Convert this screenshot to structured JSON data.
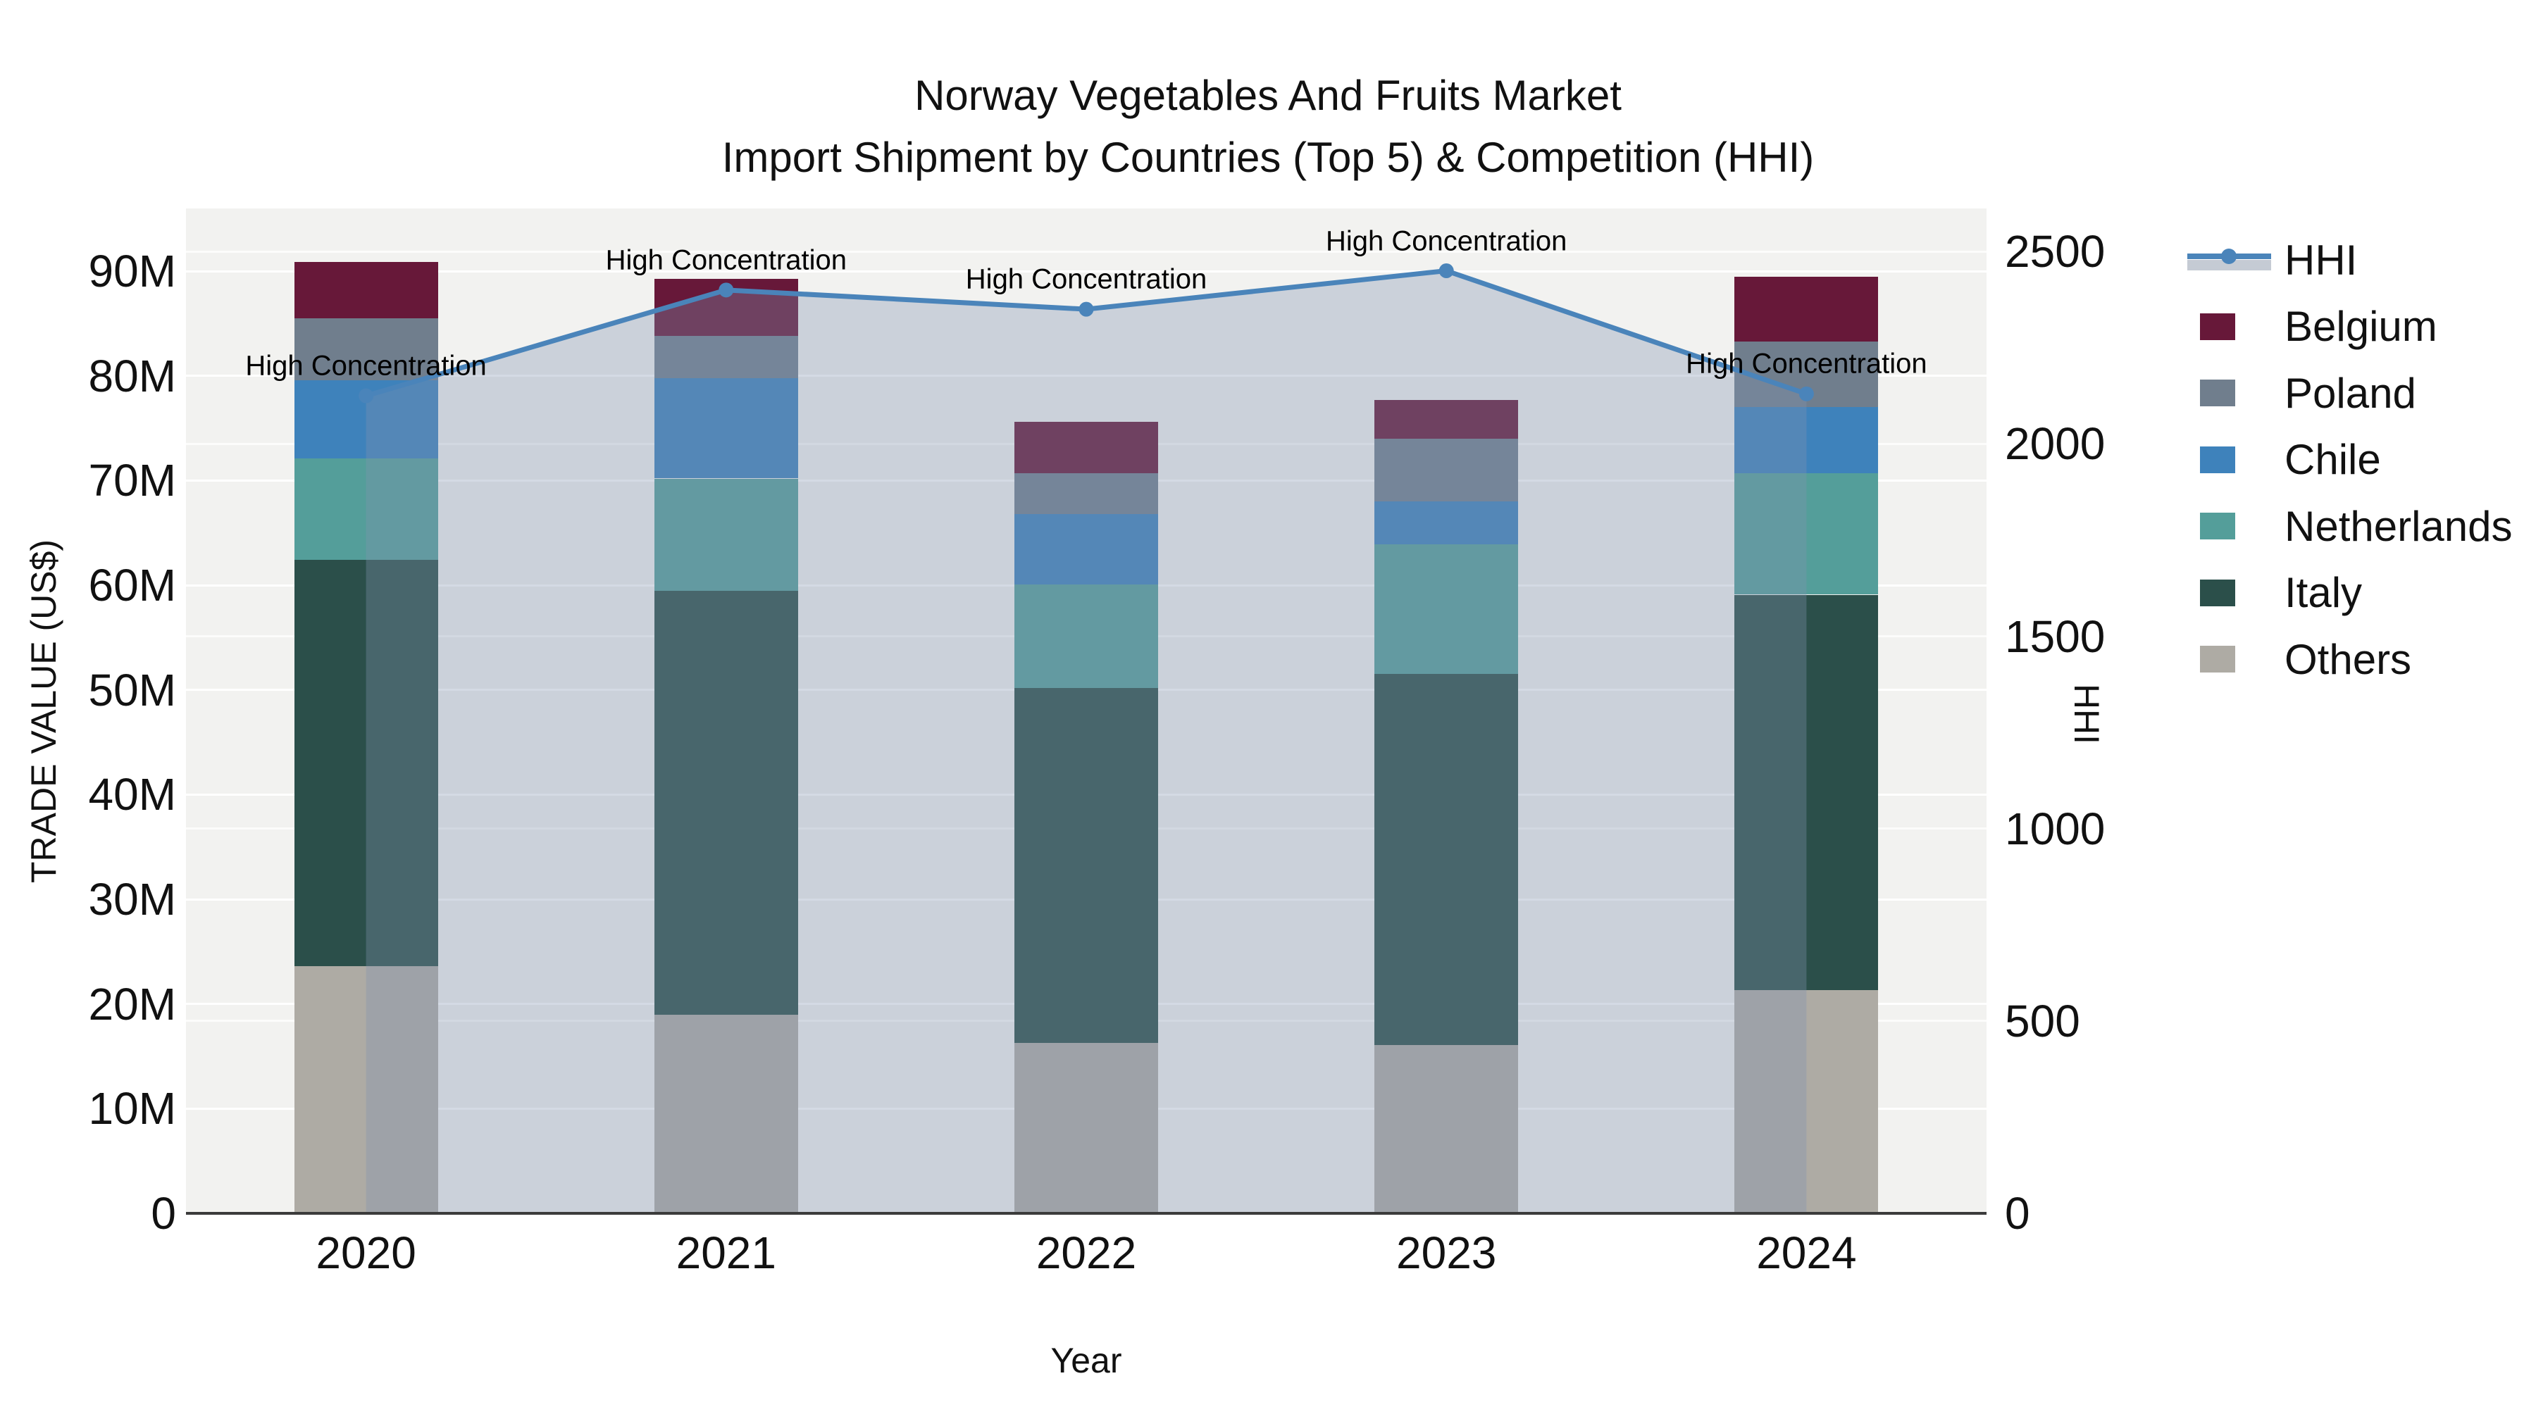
{
  "title": {
    "line1": "Norway Vegetables And Fruits Market",
    "line2": "Import Shipment by Countries (Top 5) & Competition (HHI)"
  },
  "axes": {
    "y_left": {
      "title": "TRADE VALUE (US$)",
      "ticks": [
        {
          "value": 0,
          "label": "0"
        },
        {
          "value": 10,
          "label": "10M"
        },
        {
          "value": 20,
          "label": "20M"
        },
        {
          "value": 30,
          "label": "30M"
        },
        {
          "value": 40,
          "label": "40M"
        },
        {
          "value": 50,
          "label": "50M"
        },
        {
          "value": 60,
          "label": "60M"
        },
        {
          "value": 70,
          "label": "70M"
        },
        {
          "value": 80,
          "label": "80M"
        },
        {
          "value": 90,
          "label": "90M"
        }
      ]
    },
    "y_right": {
      "title": "HHI",
      "ticks": [
        {
          "value": 0,
          "label": "0"
        },
        {
          "value": 500,
          "label": "500"
        },
        {
          "value": 1000,
          "label": "1000"
        },
        {
          "value": 1500,
          "label": "1500"
        },
        {
          "value": 2000,
          "label": "2000"
        },
        {
          "value": 2500,
          "label": "2500"
        }
      ]
    },
    "x": {
      "title": "Year",
      "categories": [
        "2020",
        "2021",
        "2022",
        "2023",
        "2024"
      ]
    }
  },
  "legend": {
    "items": [
      {
        "label": "HHI",
        "type": "line",
        "color": "#4a84ba"
      },
      {
        "label": "Belgium",
        "type": "swatch",
        "color": "#671839"
      },
      {
        "label": "Poland",
        "type": "swatch",
        "color": "#707e8d"
      },
      {
        "label": "Chile",
        "type": "swatch",
        "color": "#3e82bb"
      },
      {
        "label": "Netherlands",
        "type": "swatch",
        "color": "#549e9a"
      },
      {
        "label": "Italy",
        "type": "swatch",
        "color": "#2b4f4a"
      },
      {
        "label": "Others",
        "type": "swatch",
        "color": "#aeaba4"
      }
    ]
  },
  "annotation_text": "High Concentration",
  "colors": {
    "plot_bg": "#f2f2f0",
    "gridline": "#ffffff",
    "axis_line": "#3b3b3b",
    "hhi_line": "#4a84ba",
    "hhi_area_fill": "rgba(130,148,175,0.34)",
    "legend_area_band": "#c5cbd4",
    "text": "#111111"
  },
  "chart_data": {
    "type": "bar+line",
    "title": "Norway Vegetables And Fruits Market — Import Shipment by Countries (Top 5) & Competition (HHI)",
    "xlabel": "Year",
    "ylabel_left": "TRADE VALUE (US$)",
    "ylabel_right": "HHI",
    "categories": [
      "2020",
      "2021",
      "2022",
      "2023",
      "2024"
    ],
    "bar_unit": "million US$",
    "bar_stack_order_bottom_to_top": [
      "Others",
      "Italy",
      "Netherlands",
      "Chile",
      "Poland",
      "Belgium"
    ],
    "bar_series": [
      {
        "name": "Others",
        "color": "#aeaba4",
        "values": [
          23.6,
          19.0,
          16.3,
          16.1,
          21.3
        ]
      },
      {
        "name": "Italy",
        "color": "#2b4f4a",
        "values": [
          38.8,
          40.5,
          33.9,
          35.4,
          37.8
        ]
      },
      {
        "name": "Netherlands",
        "color": "#549e9a",
        "values": [
          9.7,
          10.7,
          9.9,
          12.4,
          11.6
        ]
      },
      {
        "name": "Chile",
        "color": "#3e82bb",
        "values": [
          7.5,
          9.6,
          6.7,
          4.1,
          6.3
        ]
      },
      {
        "name": "Poland",
        "color": "#707e8d",
        "values": [
          5.9,
          4.0,
          3.9,
          6.0,
          6.3
        ]
      },
      {
        "name": "Belgium",
        "color": "#671839",
        "values": [
          5.4,
          5.5,
          4.9,
          3.7,
          6.2
        ]
      }
    ],
    "bar_totals": [
      90.9,
      89.3,
      75.6,
      77.7,
      89.5
    ],
    "line_series": {
      "name": "HHI",
      "color": "#4a84ba",
      "values": [
        2125,
        2400,
        2350,
        2450,
        2130
      ],
      "area_under_line": true,
      "point_annotations": [
        "High Concentration",
        "High Concentration",
        "High Concentration",
        "High Concentration",
        "High Concentration"
      ]
    },
    "ylim_left": [
      0,
      96
    ],
    "ylim_right": [
      0,
      2612
    ],
    "grid": true,
    "legend_position": "right"
  }
}
